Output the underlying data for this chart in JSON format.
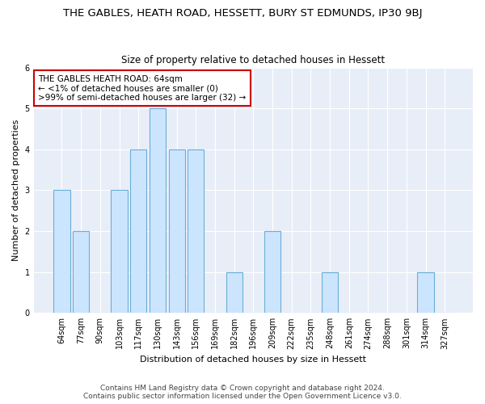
{
  "title": "THE GABLES, HEATH ROAD, HESSETT, BURY ST EDMUNDS, IP30 9BJ",
  "subtitle": "Size of property relative to detached houses in Hessett",
  "xlabel": "Distribution of detached houses by size in Hessett",
  "ylabel": "Number of detached properties",
  "categories": [
    "64sqm",
    "77sqm",
    "90sqm",
    "103sqm",
    "117sqm",
    "130sqm",
    "143sqm",
    "156sqm",
    "169sqm",
    "182sqm",
    "196sqm",
    "209sqm",
    "222sqm",
    "235sqm",
    "248sqm",
    "261sqm",
    "274sqm",
    "288sqm",
    "301sqm",
    "314sqm",
    "327sqm"
  ],
  "values": [
    3,
    2,
    0,
    3,
    4,
    5,
    4,
    4,
    0,
    1,
    0,
    2,
    0,
    0,
    1,
    0,
    0,
    0,
    0,
    1,
    0
  ],
  "bar_color": "#cce5ff",
  "bar_edge_color": "#6baed6",
  "annotation_line1": "THE GABLES HEATH ROAD: 64sqm",
  "annotation_line2": "← <1% of detached houses are smaller (0)",
  "annotation_line3": ">99% of semi-detached houses are larger (32) →",
  "annotation_box_facecolor": "#ffffff",
  "annotation_box_edgecolor": "#cc0000",
  "ylim": [
    0,
    6
  ],
  "yticks": [
    0,
    1,
    2,
    3,
    4,
    5,
    6
  ],
  "title_fontsize": 9.5,
  "subtitle_fontsize": 8.5,
  "axis_label_fontsize": 8,
  "tick_fontsize": 7,
  "annotation_fontsize": 7.5,
  "footer_fontsize": 6.5,
  "footer_line1": "Contains HM Land Registry data © Crown copyright and database right 2024.",
  "footer_line2": "Contains public sector information licensed under the Open Government Licence v3.0.",
  "background_color": "#ffffff",
  "plot_bg_color": "#e8eef8",
  "grid_color": "#ffffff",
  "grid_linewidth": 0.8
}
